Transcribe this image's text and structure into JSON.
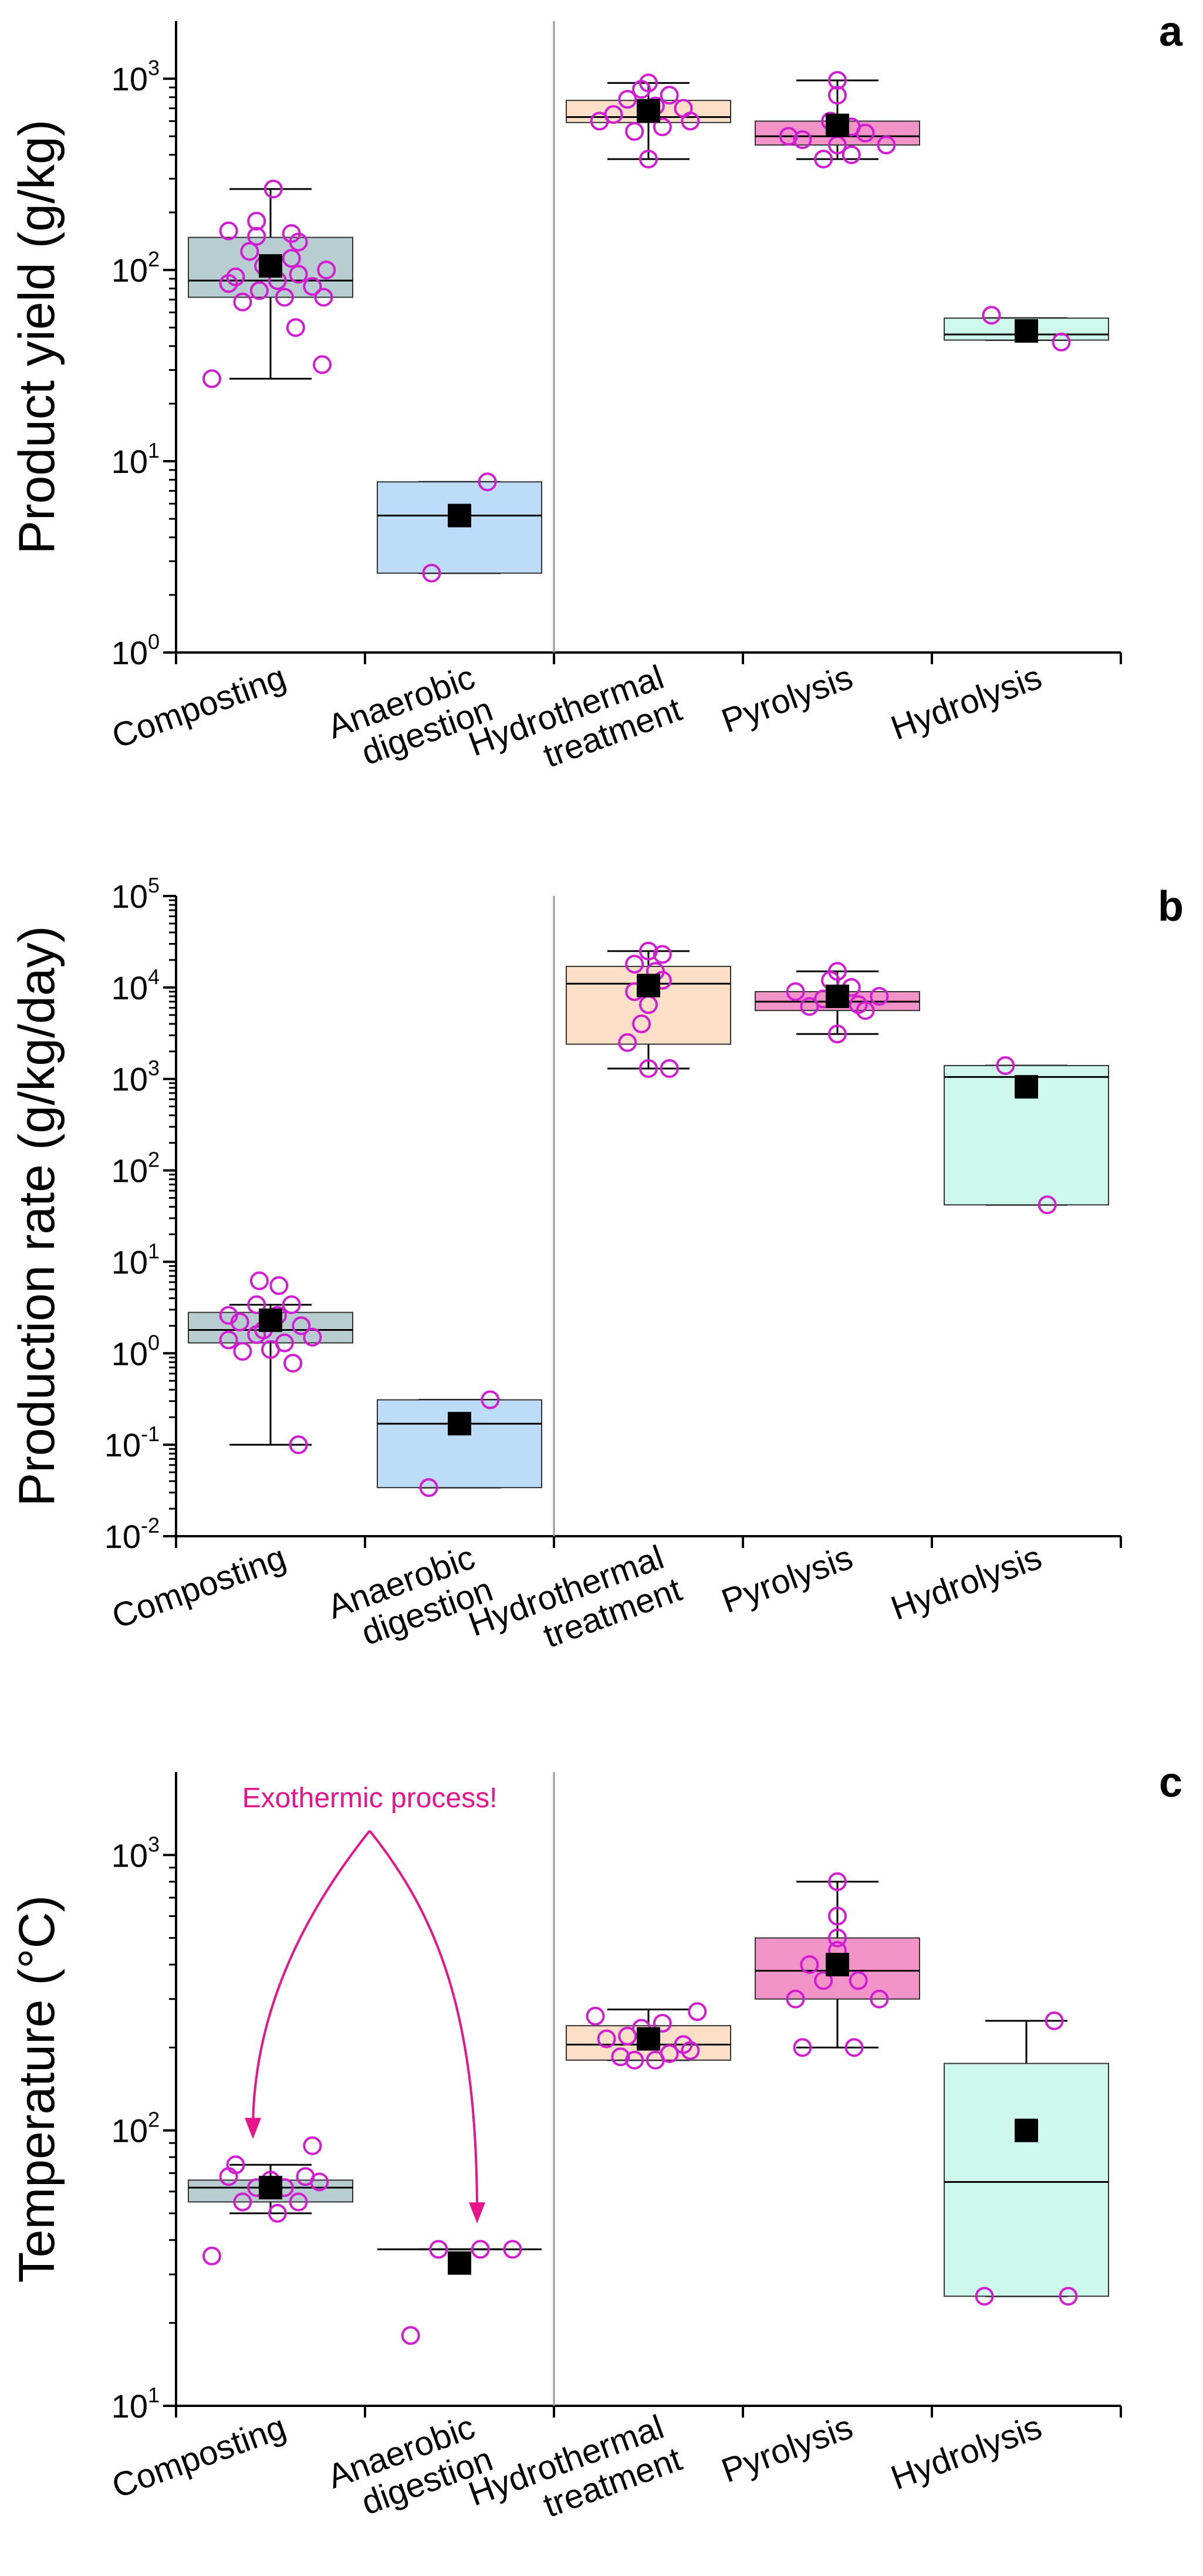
{
  "chart_data": [
    {
      "type": "box",
      "panel": "a",
      "ylabel": "Product yield (g/kg)",
      "yscale": "log",
      "ylim": [
        1,
        2000
      ],
      "ytick_values": [
        1,
        10,
        100,
        1000
      ],
      "yticks": [
        {
          "base": "10",
          "exp": "0"
        },
        {
          "base": "10",
          "exp": "1"
        },
        {
          "base": "10",
          "exp": "2"
        },
        {
          "base": "10",
          "exp": "3"
        }
      ],
      "categories": [
        {
          "lines": [
            "Composting"
          ]
        },
        {
          "lines": [
            "Anaerobic",
            "digestion"
          ]
        },
        {
          "lines": [
            "Hydrothermal",
            "treatment"
          ]
        },
        {
          "lines": [
            "Pyrolysis"
          ]
        },
        {
          "lines": [
            "Hydrolysis"
          ]
        }
      ],
      "boxes": [
        {
          "q1": 72,
          "median": 88,
          "q3": 148,
          "whisker_low": 27,
          "whisker_high": 265,
          "mean": 105,
          "fill": "#b7cdcf",
          "points": [
            [
              -0.42,
              27
            ],
            [
              0.37,
              32
            ],
            [
              0.18,
              50
            ],
            [
              -0.2,
              68
            ],
            [
              0.1,
              72
            ],
            [
              0.38,
              72
            ],
            [
              -0.08,
              78
            ],
            [
              0.3,
              82
            ],
            [
              -0.3,
              85
            ],
            [
              0.05,
              88
            ],
            [
              -0.25,
              92
            ],
            [
              0.2,
              95
            ],
            [
              0.4,
              100
            ],
            [
              -0.05,
              105
            ],
            [
              0.15,
              115
            ],
            [
              -0.15,
              125
            ],
            [
              0.2,
              140
            ],
            [
              -0.1,
              150
            ],
            [
              0.15,
              155
            ],
            [
              -0.3,
              160
            ],
            [
              -0.1,
              180
            ],
            [
              0.02,
              265
            ]
          ]
        },
        {
          "q1": 2.6,
          "median": 5.2,
          "q3": 7.8,
          "whisker_low": 2.6,
          "whisker_high": 7.8,
          "mean": 5.2,
          "fill": "#bcdcf8",
          "points": [
            [
              -0.2,
              2.6
            ],
            [
              0.2,
              7.8
            ]
          ]
        },
        {
          "q1": 590,
          "median": 630,
          "q3": 770,
          "whisker_low": 380,
          "whisker_high": 950,
          "mean": 680,
          "fill": "#fbdfc6",
          "points": [
            [
              0.0,
              380
            ],
            [
              -0.35,
              600
            ],
            [
              0.3,
              600
            ],
            [
              -0.1,
              530
            ],
            [
              0.1,
              560
            ],
            [
              -0.25,
              650
            ],
            [
              0.25,
              700
            ],
            [
              0.05,
              720
            ],
            [
              -0.15,
              780
            ],
            [
              0.15,
              820
            ],
            [
              -0.05,
              880
            ],
            [
              0.0,
              950
            ]
          ]
        },
        {
          "q1": 450,
          "median": 500,
          "q3": 600,
          "whisker_low": 380,
          "whisker_high": 980,
          "mean": 570,
          "fill": "#f294c8",
          "points": [
            [
              -0.1,
              380
            ],
            [
              0.1,
              400
            ],
            [
              0.0,
              450
            ],
            [
              0.35,
              450
            ],
            [
              -0.25,
              480
            ],
            [
              -0.35,
              500
            ],
            [
              0.2,
              520
            ],
            [
              0.1,
              560
            ],
            [
              -0.05,
              600
            ],
            [
              0.0,
              820
            ],
            [
              0.0,
              980
            ]
          ]
        },
        {
          "q1": 43,
          "median": 46,
          "q3": 56,
          "whisker_low": 43,
          "whisker_high": 56,
          "mean": 48,
          "fill": "#cff8ec",
          "points": [
            [
              -0.25,
              58
            ],
            [
              0.25,
              42
            ]
          ]
        }
      ]
    },
    {
      "type": "box",
      "panel": "b",
      "ylabel": "Production rate (g/kg/day)",
      "yscale": "log",
      "ylim": [
        0.01,
        100000
      ],
      "ytick_values": [
        0.01,
        0.1,
        1,
        10,
        100,
        1000,
        10000,
        100000
      ],
      "yticks": [
        {
          "base": "10",
          "exp": "-2"
        },
        {
          "base": "10",
          "exp": "-1"
        },
        {
          "base": "10",
          "exp": "0"
        },
        {
          "base": "10",
          "exp": "1"
        },
        {
          "base": "10",
          "exp": "2"
        },
        {
          "base": "10",
          "exp": "3"
        },
        {
          "base": "10",
          "exp": "4"
        },
        {
          "base": "10",
          "exp": "5"
        }
      ],
      "categories": [
        {
          "lines": [
            "Composting"
          ]
        },
        {
          "lines": [
            "Anaerobic",
            "digestion"
          ]
        },
        {
          "lines": [
            "Hydrothermal",
            "treatment"
          ]
        },
        {
          "lines": [
            "Pyrolysis"
          ]
        },
        {
          "lines": [
            "Hydrolysis"
          ]
        }
      ],
      "boxes": [
        {
          "q1": 1.3,
          "median": 1.8,
          "q3": 2.8,
          "whisker_low": 0.1,
          "whisker_high": 3.4,
          "mean": 2.3,
          "fill": "#b7cdcf",
          "points": [
            [
              0.2,
              0.1
            ],
            [
              0.16,
              0.78
            ],
            [
              -0.2,
              1.05
            ],
            [
              0.0,
              1.1
            ],
            [
              0.1,
              1.3
            ],
            [
              -0.3,
              1.4
            ],
            [
              0.3,
              1.5
            ],
            [
              -0.1,
              1.6
            ],
            [
              -0.05,
              1.8
            ],
            [
              0.22,
              2.0
            ],
            [
              -0.22,
              2.2
            ],
            [
              0.05,
              2.6
            ],
            [
              -0.3,
              2.6
            ],
            [
              0.15,
              3.4
            ],
            [
              -0.1,
              3.4
            ],
            [
              0.06,
              5.5
            ],
            [
              -0.08,
              6.2
            ]
          ]
        },
        {
          "q1": 0.034,
          "median": 0.17,
          "q3": 0.31,
          "whisker_low": 0.034,
          "whisker_high": 0.31,
          "mean": 0.17,
          "fill": "#bcdcf8",
          "points": [
            [
              -0.22,
              0.034
            ],
            [
              0.22,
              0.31
            ]
          ]
        },
        {
          "q1": 2400,
          "median": 11000,
          "q3": 17000,
          "whisker_low": 1300,
          "whisker_high": 25000,
          "mean": 10500,
          "fill": "#fbdfc6",
          "points": [
            [
              0.0,
              1300
            ],
            [
              0.15,
              1300
            ],
            [
              -0.15,
              2500
            ],
            [
              -0.05,
              4000
            ],
            [
              0.0,
              6500
            ],
            [
              -0.1,
              9000
            ],
            [
              0.1,
              12000
            ],
            [
              0.05,
              15000
            ],
            [
              -0.1,
              18000
            ],
            [
              0.1,
              23000
            ],
            [
              0.0,
              25000
            ]
          ]
        },
        {
          "q1": 5600,
          "median": 7000,
          "q3": 9000,
          "whisker_low": 3100,
          "whisker_high": 15000,
          "mean": 8000,
          "fill": "#f294c8",
          "points": [
            [
              0.0,
              3100
            ],
            [
              0.2,
              5600
            ],
            [
              -0.2,
              6200
            ],
            [
              0.15,
              6500
            ],
            [
              -0.1,
              7500
            ],
            [
              0.3,
              8000
            ],
            [
              -0.3,
              9000
            ],
            [
              0.1,
              10000
            ],
            [
              -0.05,
              12000
            ],
            [
              0.0,
              15000
            ]
          ]
        },
        {
          "q1": 42,
          "median": 1050,
          "q3": 1400,
          "whisker_low": 42,
          "whisker_high": 1400,
          "mean": 820,
          "fill": "#cff8ec",
          "points": [
            [
              0.15,
              42
            ],
            [
              -0.15,
              1400
            ]
          ]
        }
      ]
    },
    {
      "type": "box",
      "panel": "c",
      "ylabel": "Temperature (°C)",
      "yscale": "log",
      "ylim": [
        10,
        2000
      ],
      "ytick_values": [
        10,
        100,
        1000
      ],
      "yticks": [
        {
          "base": "10",
          "exp": "1"
        },
        {
          "base": "10",
          "exp": "2"
        },
        {
          "base": "10",
          "exp": "3"
        }
      ],
      "categories": [
        {
          "lines": [
            "Composting"
          ]
        },
        {
          "lines": [
            "Anaerobic",
            "digestion"
          ]
        },
        {
          "lines": [
            "Hydrothermal",
            "treatment"
          ]
        },
        {
          "lines": [
            "Pyrolysis"
          ]
        },
        {
          "lines": [
            "Hydrolysis"
          ]
        }
      ],
      "annotation": {
        "text": "Exothermic process!",
        "color": "#e8148c",
        "targets": [
          0,
          1
        ]
      },
      "boxes": [
        {
          "q1": 55,
          "median": 62,
          "q3": 66,
          "whisker_low": 50,
          "whisker_high": 75,
          "mean": 62,
          "fill": "#b7cdcf",
          "points": [
            [
              -0.42,
              35
            ],
            [
              0.05,
              50
            ],
            [
              -0.2,
              55
            ],
            [
              0.2,
              55
            ],
            [
              -0.3,
              68
            ],
            [
              0.35,
              65
            ],
            [
              -0.1,
              62
            ],
            [
              0.1,
              62
            ],
            [
              -0.25,
              75
            ],
            [
              0.3,
              88
            ],
            [
              0.0,
              66
            ],
            [
              0.25,
              68
            ]
          ]
        },
        {
          "q1": 37,
          "median": 37,
          "q3": 37,
          "whisker_low": 37,
          "whisker_high": 37,
          "mean": 33,
          "fill": "#bcdcf8",
          "points": [
            [
              -0.35,
              18
            ],
            [
              -0.15,
              37
            ],
            [
              0.15,
              37
            ],
            [
              0.38,
              37
            ]
          ]
        },
        {
          "q1": 180,
          "median": 205,
          "q3": 240,
          "whisker_low": 180,
          "whisker_high": 275,
          "mean": 215,
          "fill": "#fbdfc6",
          "points": [
            [
              -0.38,
              260
            ],
            [
              0.35,
              270
            ],
            [
              -0.3,
              215
            ],
            [
              -0.15,
              220
            ],
            [
              -0.05,
              235
            ],
            [
              0.1,
              245
            ],
            [
              0.25,
              205
            ],
            [
              0.15,
              190
            ],
            [
              -0.1,
              180
            ],
            [
              0.05,
              180
            ],
            [
              -0.2,
              185
            ],
            [
              0.3,
              195
            ]
          ]
        },
        {
          "q1": 300,
          "median": 380,
          "q3": 500,
          "whisker_low": 200,
          "whisker_high": 800,
          "mean": 400,
          "fill": "#f294c8",
          "points": [
            [
              -0.25,
              200
            ],
            [
              0.12,
              200
            ],
            [
              -0.3,
              300
            ],
            [
              0.3,
              300
            ],
            [
              -0.1,
              350
            ],
            [
              0.15,
              350
            ],
            [
              -0.2,
              400
            ],
            [
              0.0,
              450
            ],
            [
              0.0,
              500
            ],
            [
              0.0,
              600
            ],
            [
              0.0,
              800
            ]
          ]
        },
        {
          "q1": 25,
          "median": 65,
          "q3": 175,
          "whisker_low": 25,
          "whisker_high": 250,
          "mean": 100,
          "fill": "#cff8ec",
          "points": [
            [
              -0.3,
              25
            ],
            [
              0.3,
              25
            ],
            [
              0.2,
              250
            ]
          ]
        }
      ]
    }
  ]
}
